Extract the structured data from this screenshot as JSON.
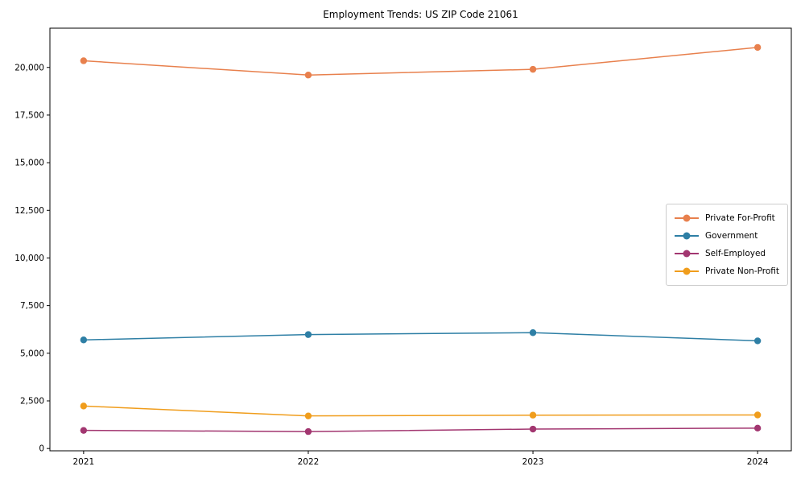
{
  "chart_data": {
    "type": "line",
    "title": "Employment Trends: US ZIP Code 21061",
    "x": [
      2021,
      2022,
      2023,
      2024
    ],
    "x_tick_labels": [
      "2021",
      "2022",
      "2023",
      "2024"
    ],
    "series": [
      {
        "name": "Private For-Profit",
        "color": "#e8804d",
        "values": [
          20350,
          19600,
          19900,
          21050
        ]
      },
      {
        "name": "Government",
        "color": "#2e7fa5",
        "values": [
          5700,
          5980,
          6080,
          5650
        ]
      },
      {
        "name": "Self-Employed",
        "color": "#a23670",
        "values": [
          950,
          890,
          1020,
          1070
        ]
      },
      {
        "name": "Private Non-Profit",
        "color": "#f09d1c",
        "values": [
          2230,
          1710,
          1750,
          1760
        ]
      }
    ],
    "xlabel": "",
    "ylabel": "",
    "xlim": [
      2020.85,
      2024.15
    ],
    "ylim": [
      -120,
      22060
    ],
    "yticks": [
      0,
      2500,
      5000,
      7500,
      10000,
      12500,
      15000,
      17500,
      20000
    ],
    "grid": false,
    "legend_position": "center-right",
    "axis_color": "#000000",
    "tick_label_color": "#000000"
  }
}
